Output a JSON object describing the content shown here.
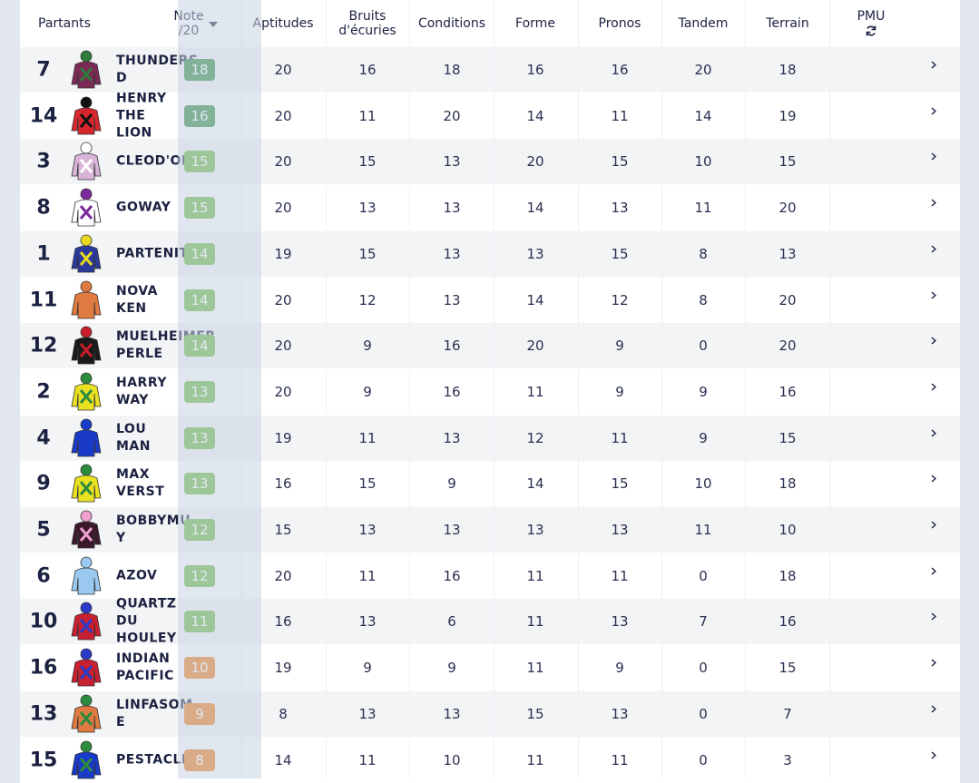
{
  "header": {
    "partants": "Partants",
    "note_line1": "Note",
    "note_line2": "/20",
    "aptitudes": "Aptitudes",
    "bruits_line1": "Bruits",
    "bruits_line2": "d'écuries",
    "conditions": "Conditions",
    "forme": "Forme",
    "pronos": "Pronos",
    "tandem": "Tandem",
    "terrain": "Terrain",
    "pmu": "PMU",
    "sort_icon": "caret-down-icon",
    "refresh_icon": "refresh-icon"
  },
  "colors": {
    "dark_green": "#2e8b3e",
    "green": "#6ab842",
    "orange": "#f07a1a"
  },
  "rows": [
    {
      "num": "7",
      "name": "THUNDERS D",
      "note": "18",
      "color": "dark_green",
      "apt": "20",
      "bru": "16",
      "con": "18",
      "for": "16",
      "pro": "16",
      "tan": "20",
      "ter": "18",
      "silk": [
        "#7a2a55",
        "#2f7a3a"
      ]
    },
    {
      "num": "14",
      "name": "HENRY\nTHE\nLION",
      "note": "16",
      "color": "dark_green",
      "apt": "20",
      "bru": "11",
      "con": "20",
      "for": "14",
      "pro": "11",
      "tan": "14",
      "ter": "19",
      "silk": [
        "#d8262e",
        "#111111"
      ]
    },
    {
      "num": "3",
      "name": "CLEOD'OR",
      "note": "15",
      "color": "green",
      "apt": "20",
      "bru": "15",
      "con": "13",
      "for": "20",
      "pro": "15",
      "tan": "10",
      "ter": "15",
      "silk": [
        "#d8b4d8",
        "#ffffff"
      ]
    },
    {
      "num": "8",
      "name": "GOWAY",
      "note": "15",
      "color": "green",
      "apt": "20",
      "bru": "13",
      "con": "13",
      "for": "14",
      "pro": "13",
      "tan": "11",
      "ter": "20",
      "silk": [
        "#ffffff",
        "#7a2a9a"
      ]
    },
    {
      "num": "1",
      "name": "PARTENIT",
      "note": "14",
      "color": "green",
      "apt": "19",
      "bru": "15",
      "con": "13",
      "for": "13",
      "pro": "15",
      "tan": "8",
      "ter": "13",
      "silk": [
        "#2a3a9a",
        "#e8d820"
      ]
    },
    {
      "num": "11",
      "name": "NOVA\nKEN",
      "note": "14",
      "color": "green",
      "apt": "20",
      "bru": "12",
      "con": "13",
      "for": "14",
      "pro": "12",
      "tan": "8",
      "ter": "20",
      "silk": [
        "#e07a40",
        "#e07a40"
      ]
    },
    {
      "num": "12",
      "name": "MUELHEIMER\nPERLE",
      "note": "14",
      "color": "green",
      "apt": "20",
      "bru": "9",
      "con": "16",
      "for": "20",
      "pro": "9",
      "tan": "0",
      "ter": "20",
      "silk": [
        "#1a1a1a",
        "#c8202a"
      ]
    },
    {
      "num": "2",
      "name": "HARRY\nWAY",
      "note": "13",
      "color": "green",
      "apt": "20",
      "bru": "9",
      "con": "16",
      "for": "11",
      "pro": "9",
      "tan": "9",
      "ter": "16",
      "silk": [
        "#e8e020",
        "#2e8b3e"
      ]
    },
    {
      "num": "4",
      "name": "LOU\nMAN",
      "note": "13",
      "color": "green",
      "apt": "19",
      "bru": "11",
      "con": "13",
      "for": "12",
      "pro": "11",
      "tan": "9",
      "ter": "15",
      "silk": [
        "#1a3ac8",
        "#1a3ac8"
      ]
    },
    {
      "num": "9",
      "name": "MAX\nVERST",
      "note": "13",
      "color": "green",
      "apt": "16",
      "bru": "15",
      "con": "9",
      "for": "14",
      "pro": "15",
      "tan": "10",
      "ter": "18",
      "silk": [
        "#e8e020",
        "#2e8b3e"
      ]
    },
    {
      "num": "5",
      "name": "BOBBYMU  Y",
      "note": "12",
      "color": "green",
      "apt": "15",
      "bru": "13",
      "con": "13",
      "for": "13",
      "pro": "13",
      "tan": "11",
      "ter": "10",
      "silk": [
        "#3a1a2a",
        "#f0a0d0"
      ]
    },
    {
      "num": "6",
      "name": "AZOV",
      "note": "12",
      "color": "green",
      "apt": "20",
      "bru": "11",
      "con": "16",
      "for": "11",
      "pro": "11",
      "tan": "0",
      "ter": "18",
      "silk": [
        "#9ac8f0",
        "#9ac8f0"
      ]
    },
    {
      "num": "10",
      "name": "QUARTZ\nDU\nHOULEY",
      "note": "11",
      "color": "green",
      "apt": "16",
      "bru": "13",
      "con": "6",
      "for": "11",
      "pro": "13",
      "tan": "7",
      "ter": "16",
      "silk": [
        "#c82030",
        "#2a3ac8"
      ]
    },
    {
      "num": "16",
      "name": "INDIAN\nPACIFIC",
      "note": "10",
      "color": "orange",
      "apt": "19",
      "bru": "9",
      "con": "9",
      "for": "11",
      "pro": "9",
      "tan": "0",
      "ter": "15",
      "silk": [
        "#c82030",
        "#2a3ac8"
      ]
    },
    {
      "num": "13",
      "name": "LINFASOM E",
      "note": "9",
      "color": "orange",
      "apt": "8",
      "bru": "13",
      "con": "13",
      "for": "15",
      "pro": "13",
      "tan": "0",
      "ter": "7",
      "silk": [
        "#e07a40",
        "#2e8b3e"
      ]
    },
    {
      "num": "15",
      "name": "PESTACLE",
      "note": "8",
      "color": "orange",
      "apt": "14",
      "bru": "11",
      "con": "10",
      "for": "11",
      "pro": "11",
      "tan": "0",
      "ter": "3",
      "silk": [
        "#1a3ac8",
        "#2e8b3e"
      ]
    }
  ]
}
